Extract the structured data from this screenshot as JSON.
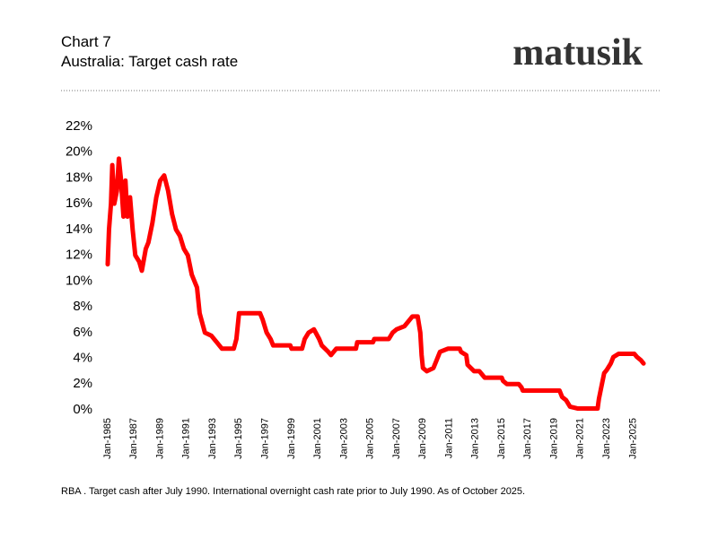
{
  "chart_data": {
    "type": "line",
    "subtitle": "Chart 7",
    "title": "Australia: Target cash rate",
    "brand": "matusik",
    "note": "RBA . Target cash after July 1990.  International overnight cash rate prior to July 1990.  As of October 2025.",
    "x": [
      1985.0,
      1985.1,
      1985.25,
      1985.35,
      1985.5,
      1985.7,
      1985.85,
      1986.0,
      1986.2,
      1986.35,
      1986.5,
      1986.7,
      1986.9,
      1987.1,
      1987.4,
      1987.6,
      1987.9,
      1988.1,
      1988.4,
      1988.7,
      1989.0,
      1989.3,
      1989.6,
      1989.9,
      1990.2,
      1990.5,
      1990.8,
      1991.1,
      1991.4,
      1991.8,
      1992.0,
      1992.4,
      1992.9,
      1993.3,
      1993.7,
      1994.6,
      1994.8,
      1995.0,
      1996.6,
      1996.8,
      1997.1,
      1997.4,
      1997.6,
      1998.9,
      1999.0,
      1999.8,
      2000.0,
      2000.3,
      2000.7,
      2001.1,
      2001.3,
      2001.8,
      2002.0,
      2002.4,
      2003.9,
      2004.0,
      2005.2,
      2005.3,
      2006.4,
      2006.7,
      2007.0,
      2007.6,
      2008.0,
      2008.2,
      2008.6,
      2008.8,
      2008.9,
      2009.0,
      2009.3,
      2009.8,
      2010.0,
      2010.3,
      2010.9,
      2011.8,
      2011.9,
      2012.3,
      2012.4,
      2012.9,
      2013.3,
      2013.5,
      2013.7,
      2015.0,
      2015.1,
      2015.4,
      2016.3,
      2016.5,
      2016.6,
      2019.4,
      2019.5,
      2019.6,
      2019.9,
      2020.2,
      2020.8,
      2022.3,
      2022.4,
      2022.6,
      2022.7,
      2022.8,
      2023.0,
      2023.3,
      2023.5,
      2023.9,
      2025.1,
      2025.3,
      2025.6,
      2025.8
    ],
    "series": [
      {
        "color": "#ff0000",
        "values": [
          11.3,
          14,
          16,
          19,
          16,
          17,
          19.5,
          18,
          15,
          17.8,
          15,
          16.5,
          14,
          12,
          11.5,
          10.8,
          12.5,
          13,
          14.5,
          16.5,
          17.8,
          18.2,
          17,
          15.2,
          14,
          13.5,
          12.5,
          12,
          10.5,
          9.5,
          7.5,
          6,
          5.75,
          5.25,
          4.75,
          4.75,
          5.5,
          7.5,
          7.5,
          7,
          6,
          5.5,
          5,
          5,
          4.75,
          4.75,
          5.5,
          6,
          6.25,
          5.5,
          5,
          4.5,
          4.25,
          4.75,
          4.75,
          5.25,
          5.25,
          5.5,
          5.5,
          6,
          6.25,
          6.5,
          7,
          7.25,
          7.25,
          6,
          4.25,
          3.25,
          3,
          3.25,
          3.75,
          4.5,
          4.75,
          4.75,
          4.5,
          4.25,
          3.5,
          3,
          3,
          2.75,
          2.5,
          2.5,
          2.25,
          2,
          2,
          1.75,
          1.5,
          1.5,
          1.25,
          1,
          0.75,
          0.25,
          0.1,
          0.1,
          0.85,
          1.85,
          2.35,
          2.85,
          3.1,
          3.6,
          4.1,
          4.35,
          4.35,
          4.1,
          3.85,
          3.6
        ]
      }
    ],
    "xlim": [
      1985,
      2026
    ],
    "xticks": [
      {
        "value": 1985,
        "label": "Jan-1985"
      },
      {
        "value": 1987,
        "label": "Jan-1987"
      },
      {
        "value": 1989,
        "label": "Jan-1989"
      },
      {
        "value": 1991,
        "label": "Jan-1991"
      },
      {
        "value": 1993,
        "label": "Jan-1993"
      },
      {
        "value": 1995,
        "label": "Jan-1995"
      },
      {
        "value": 1997,
        "label": "Jan-1997"
      },
      {
        "value": 1999,
        "label": "Jan-1999"
      },
      {
        "value": 2001,
        "label": "Jan-2001"
      },
      {
        "value": 2003,
        "label": "Jan-2003"
      },
      {
        "value": 2005,
        "label": "Jan-2005"
      },
      {
        "value": 2007,
        "label": "Jan-2007"
      },
      {
        "value": 2009,
        "label": "Jan-2009"
      },
      {
        "value": 2011,
        "label": "Jan-2011"
      },
      {
        "value": 2013,
        "label": "Jan-2013"
      },
      {
        "value": 2015,
        "label": "Jan-2015"
      },
      {
        "value": 2017,
        "label": "Jan-2017"
      },
      {
        "value": 2019,
        "label": "Jan-2019"
      },
      {
        "value": 2021,
        "label": "Jan-2021"
      },
      {
        "value": 2023,
        "label": "Jan-2023"
      },
      {
        "value": 2025,
        "label": "Jan-2025"
      }
    ],
    "ylim": [
      0,
      22
    ],
    "yticks": [
      {
        "value": 0,
        "label": "0%"
      },
      {
        "value": 2,
        "label": "2%"
      },
      {
        "value": 4,
        "label": "4%"
      },
      {
        "value": 6,
        "label": "6%"
      },
      {
        "value": 8,
        "label": "8%"
      },
      {
        "value": 10,
        "label": "10%"
      },
      {
        "value": 12,
        "label": "12%"
      },
      {
        "value": 14,
        "label": "14%"
      },
      {
        "value": 16,
        "label": "16%"
      },
      {
        "value": 18,
        "label": "18%"
      },
      {
        "value": 20,
        "label": "20%"
      },
      {
        "value": 22,
        "label": "22%"
      }
    ],
    "grid": false
  }
}
